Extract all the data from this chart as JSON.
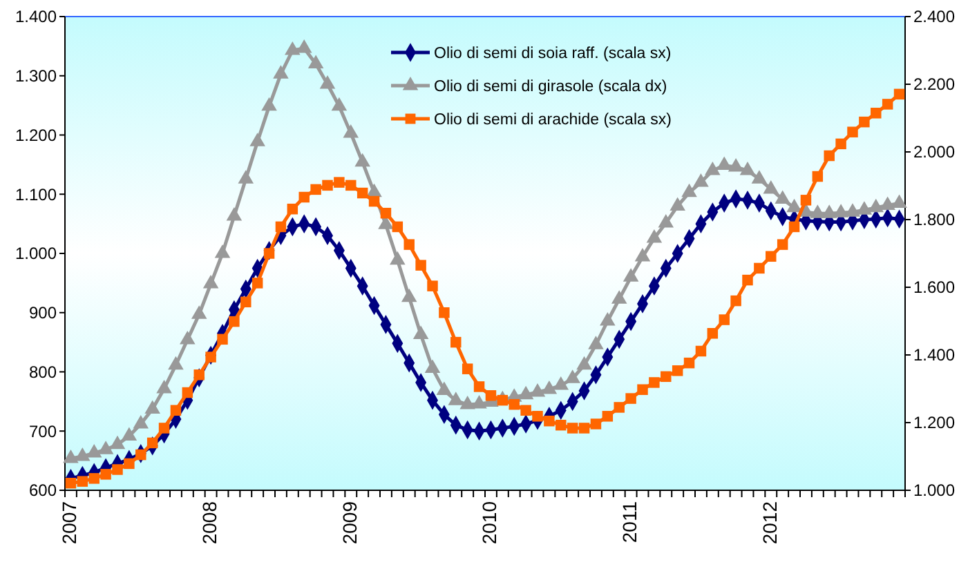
{
  "chart_data": {
    "type": "line",
    "categories": [
      "2007",
      null,
      null,
      null,
      null,
      null,
      null,
      null,
      null,
      null,
      null,
      null,
      "2008",
      null,
      null,
      null,
      null,
      null,
      null,
      null,
      null,
      null,
      null,
      null,
      "2009",
      null,
      null,
      null,
      null,
      null,
      null,
      null,
      null,
      null,
      null,
      null,
      "2010",
      null,
      null,
      null,
      null,
      null,
      null,
      null,
      null,
      null,
      null,
      null,
      "2011",
      null,
      null,
      null,
      null,
      null,
      null,
      null,
      null,
      null,
      null,
      null,
      "2012",
      null,
      null,
      null,
      null,
      null,
      null,
      null,
      null,
      null,
      null,
      null
    ],
    "series": [
      {
        "name": "Olio di semi di soia raff. (scala sx)",
        "color": "#000080",
        "marker": "diamond",
        "values": [
          620,
          625,
          630,
          638,
          645,
          652,
          662,
          675,
          695,
          720,
          752,
          790,
          828,
          865,
          905,
          940,
          975,
          1005,
          1030,
          1045,
          1050,
          1045,
          1030,
          1005,
          975,
          945,
          912,
          880,
          848,
          815,
          782,
          752,
          728,
          710,
          702,
          700,
          702,
          705,
          708,
          712,
          718,
          725,
          735,
          750,
          768,
          795,
          825,
          855,
          885,
          915,
          945,
          975,
          1000,
          1025,
          1050,
          1070,
          1085,
          1092,
          1090,
          1085,
          1072,
          1062,
          1058,
          1055,
          1054,
          1053,
          1053,
          1055,
          1057,
          1058,
          1060,
          1058
        ]
      },
      {
        "name": "Olio di semi di girasole  (scala dx)",
        "color": "#999999",
        "marker": "triangle",
        "axis": "y2",
        "values": [
          1094,
          1100,
          1110,
          1120,
          1135,
          1160,
          1196,
          1240,
          1300,
          1370,
          1445,
          1520,
          1610,
          1700,
          1810,
          1920,
          2030,
          2135,
          2230,
          2300,
          2306,
          2260,
          2200,
          2135,
          2055,
          1970,
          1880,
          1785,
          1680,
          1570,
          1460,
          1360,
          1295,
          1265,
          1253,
          1255,
          1260,
          1268,
          1275,
          1282,
          1290,
          1298,
          1310,
          1330,
          1370,
          1430,
          1500,
          1565,
          1630,
          1690,
          1745,
          1790,
          1840,
          1880,
          1910,
          1945,
          1960,
          1955,
          1945,
          1920,
          1890,
          1860,
          1835,
          1822,
          1818,
          1818,
          1820,
          1822,
          1828,
          1835,
          1842,
          1848
        ]
      },
      {
        "name": "Olio di semi di arachide  (scala sx)",
        "color": "#ff6600",
        "marker": "square",
        "values": [
          612,
          615,
          620,
          627,
          635,
          645,
          660,
          680,
          705,
          735,
          765,
          795,
          825,
          855,
          885,
          918,
          950,
          1000,
          1045,
          1075,
          1095,
          1108,
          1115,
          1120,
          1115,
          1102,
          1088,
          1068,
          1045,
          1015,
          980,
          945,
          900,
          850,
          805,
          775,
          760,
          752,
          745,
          735,
          725,
          717,
          710,
          705,
          705,
          712,
          725,
          740,
          755,
          770,
          782,
          792,
          802,
          815,
          835,
          865,
          888,
          920,
          955,
          975,
          995,
          1015,
          1045,
          1090,
          1130,
          1165,
          1185,
          1205,
          1222,
          1237,
          1252,
          1269
        ]
      }
    ],
    "ylim": [
      600,
      1400
    ],
    "yticks": [
      600,
      700,
      800,
      900,
      {
        "value": 1000,
        "label": "1.000"
      },
      {
        "value": 1100,
        "label": "1.100"
      },
      {
        "value": 1200,
        "label": "1.200"
      },
      {
        "value": 1300,
        "label": "1.300"
      },
      {
        "value": 1400,
        "label": "1.400"
      }
    ],
    "y2lim": [
      1000,
      2400
    ],
    "y2ticks": [
      {
        "value": 1000,
        "label": "1.000"
      },
      {
        "value": 1200,
        "label": "1.200"
      },
      {
        "value": 1400,
        "label": "1.400"
      },
      {
        "value": 1600,
        "label": "1.600"
      },
      {
        "value": 1800,
        "label": "1.800"
      },
      {
        "value": 2000,
        "label": "2.000"
      },
      {
        "value": 2200,
        "label": "2.200"
      },
      {
        "value": 2400,
        "label": "2.400"
      }
    ],
    "grid": false,
    "legend": "top right",
    "line_style": "solid"
  }
}
